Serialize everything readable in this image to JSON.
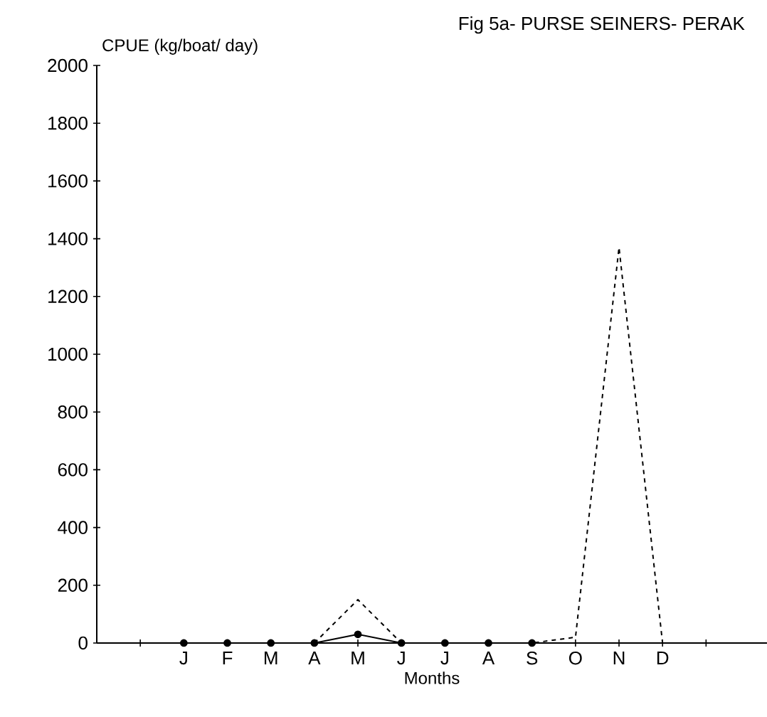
{
  "chart_data": {
    "type": "line",
    "title": "Fig  5a- PURSE  SEINERS- PERAK",
    "ylabel": "CPUE (kg/boat/ day)",
    "xlabel": "Months",
    "categories": [
      null,
      "J",
      "F",
      "M",
      "A",
      "M",
      "J",
      "J",
      "A",
      "S",
      "O",
      "N",
      "D",
      null
    ],
    "series": [
      {
        "color": "#000000",
        "marker": "circle",
        "line_style": "solid",
        "values": [
          null,
          0,
          0,
          0,
          0,
          30,
          0,
          0,
          0,
          0,
          null,
          null,
          null,
          null
        ]
      },
      {
        "color": "#000000",
        "marker": "none",
        "line_style": "dashed",
        "values": [
          null,
          null,
          null,
          null,
          0,
          150,
          0,
          null,
          null,
          0,
          20,
          1370,
          0,
          0
        ]
      }
    ],
    "ylim": [
      0,
      2000
    ],
    "yticks": [
      0,
      200,
      400,
      600,
      800,
      1000,
      1200,
      1400,
      1600,
      1800,
      2000
    ],
    "grid": false
  }
}
